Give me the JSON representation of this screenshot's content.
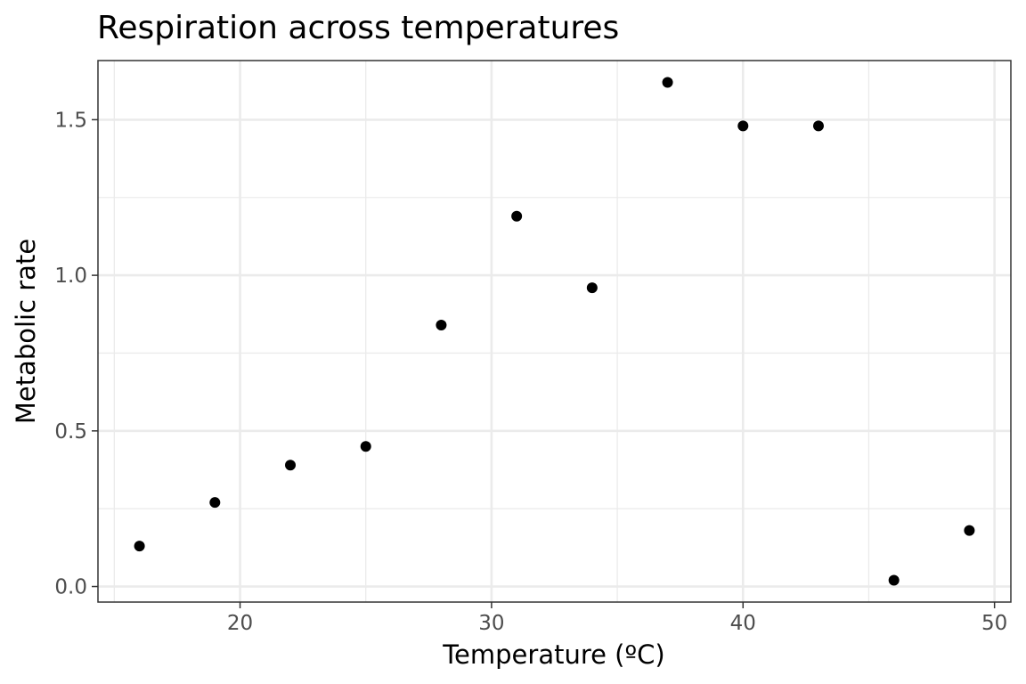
{
  "chart_data": {
    "type": "scatter",
    "title": "Respiration across temperatures",
    "xlabel": "Temperature (ºC)",
    "ylabel": "Metabolic rate",
    "xlim": [
      14.35,
      50.65
    ],
    "ylim": [
      -0.05,
      1.69
    ],
    "x_ticks": [
      20,
      30,
      40,
      50
    ],
    "x_tick_labels": [
      "20",
      "30",
      "40",
      "50"
    ],
    "x_minor_ticks": [
      15,
      25,
      35,
      45
    ],
    "y_ticks": [
      0.0,
      0.5,
      1.0,
      1.5
    ],
    "y_tick_labels": [
      "0.0",
      "0.5",
      "1.0",
      "1.5"
    ],
    "y_minor_ticks": [
      0.25,
      0.75,
      1.25
    ],
    "grid": true,
    "legend": "none",
    "point_color": "#000000",
    "points": [
      {
        "x": 16,
        "y": 0.13
      },
      {
        "x": 19,
        "y": 0.27
      },
      {
        "x": 22,
        "y": 0.39
      },
      {
        "x": 25,
        "y": 0.45
      },
      {
        "x": 28,
        "y": 0.84
      },
      {
        "x": 31,
        "y": 1.19
      },
      {
        "x": 34,
        "y": 0.96
      },
      {
        "x": 37,
        "y": 1.62
      },
      {
        "x": 40,
        "y": 1.48
      },
      {
        "x": 43,
        "y": 1.48
      },
      {
        "x": 46,
        "y": 0.02
      },
      {
        "x": 49,
        "y": 0.18
      }
    ]
  }
}
